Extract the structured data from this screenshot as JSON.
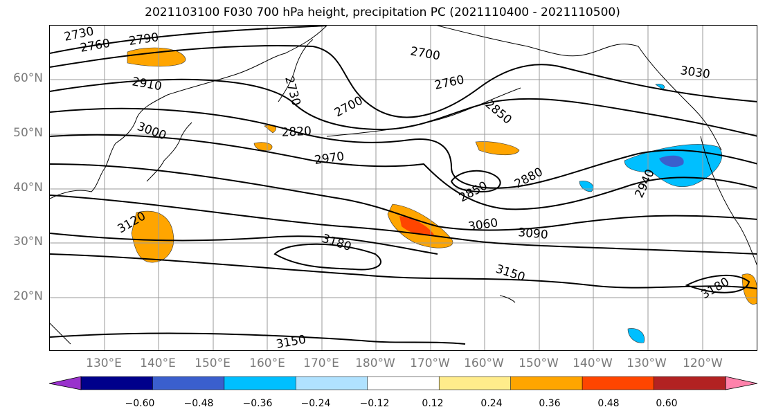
{
  "title": "2021103100 F030 700 hPa height, precipitation PC (2021110400 - 2021110500)",
  "lat_labels": [
    "60°N",
    "50°N",
    "40°N",
    "30°N",
    "20°N"
  ],
  "lon_labels": [
    "130°E",
    "140°E",
    "150°E",
    "160°E",
    "170°E",
    "180°W",
    "170°W",
    "160°W",
    "150°W",
    "140°W",
    "130°W",
    "120°W"
  ],
  "contour_labels": [
    "2730",
    "2760",
    "2790",
    "2910",
    "3000",
    "2730",
    "2820",
    "2970",
    "2700",
    "2700",
    "2760",
    "2850",
    "2850",
    "2880",
    "3030",
    "2940",
    "3060",
    "3090",
    "3120",
    "3180",
    "3150",
    "3180",
    "3150"
  ],
  "colorbar": {
    "colors": [
      "#9932cc",
      "#00008b",
      "#3a5fcd",
      "#00bfff",
      "#b0e2ff",
      "#ffffff",
      "#ffec8b",
      "#ffa500",
      "#ff4500",
      "#b22222",
      "#ff82ab"
    ],
    "ticks": [
      "−0.60",
      "−0.48",
      "−0.36",
      "−0.24",
      "−0.12",
      "0.12",
      "0.24",
      "0.36",
      "0.48",
      "0.60"
    ]
  }
}
